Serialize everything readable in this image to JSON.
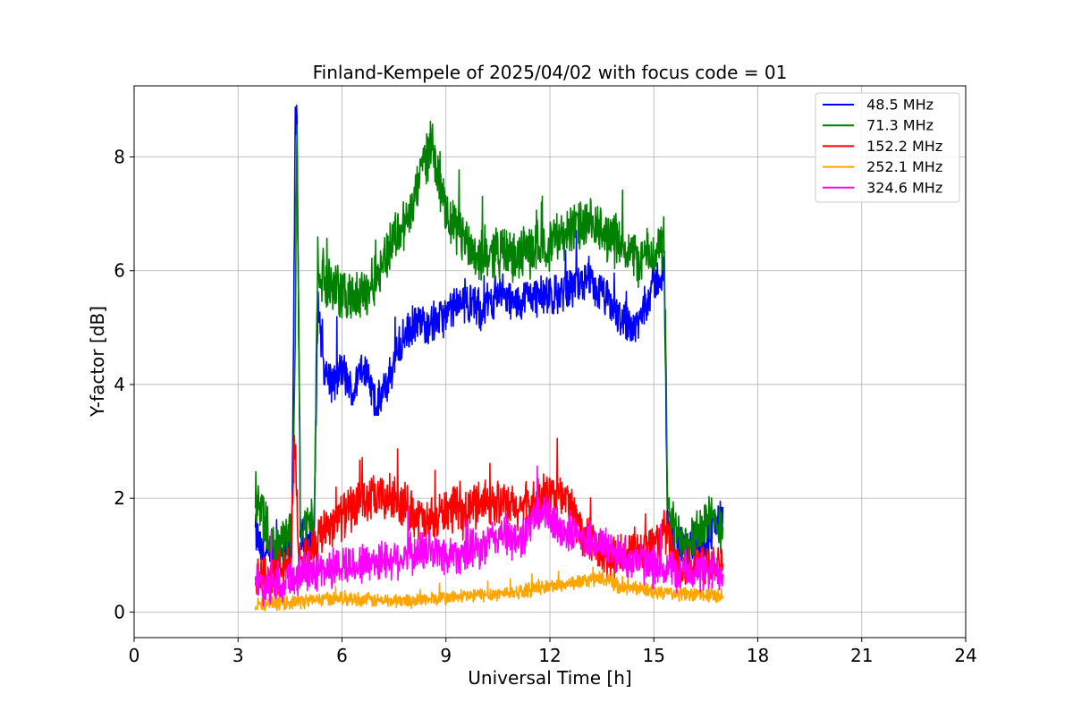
{
  "chart_data": {
    "type": "line",
    "title": "Finland-Kempele of 2025/04/02 with focus code = 01",
    "xlabel": "Universal Time [h]",
    "ylabel": "Y-factor [dB]",
    "xlim": [
      0,
      24
    ],
    "ylim": [
      -0.45,
      9.25
    ],
    "xticks": [
      0,
      3,
      6,
      9,
      12,
      15,
      18,
      21,
      24
    ],
    "xtick_labels": [
      "0",
      "3",
      "6",
      "9",
      "12",
      "15",
      "18",
      "21",
      "24"
    ],
    "yticks": [
      0,
      2,
      4,
      6,
      8
    ],
    "ytick_labels": [
      "0",
      "2",
      "4",
      "6",
      "8"
    ],
    "grid": true,
    "legend_position": "top-right",
    "series": [
      {
        "name": " 48.5 MHz",
        "color": "#0000ff",
        "noise": 0.35,
        "x": [
          3.5,
          3.7,
          4.0,
          4.3,
          4.55,
          4.65,
          4.7,
          4.8,
          5.0,
          5.2,
          5.3,
          5.5,
          5.8,
          6.0,
          6.3,
          6.6,
          7.0,
          7.3,
          7.6,
          8.0,
          8.5,
          9.0,
          9.5,
          10.0,
          10.5,
          11.0,
          11.5,
          12.0,
          12.5,
          13.0,
          13.5,
          14.0,
          14.5,
          15.0,
          15.3,
          15.4,
          15.6,
          16.0,
          16.5,
          17.0
        ],
        "y": [
          1.4,
          1.0,
          0.9,
          1.0,
          1.1,
          8.5,
          8.6,
          1.3,
          1.2,
          1.4,
          5.5,
          4.2,
          4.0,
          4.3,
          3.8,
          4.4,
          3.6,
          4.0,
          4.6,
          5.0,
          5.1,
          5.2,
          5.5,
          5.3,
          5.6,
          5.4,
          5.6,
          5.5,
          5.7,
          5.8,
          5.6,
          5.2,
          5.0,
          5.8,
          5.9,
          1.5,
          1.2,
          1.1,
          1.3,
          1.7
        ]
      },
      {
        "name": " 71.3 MHz",
        "color": "#008000",
        "noise": 0.45,
        "x": [
          3.5,
          3.7,
          4.0,
          4.3,
          4.55,
          4.65,
          4.7,
          4.8,
          5.0,
          5.2,
          5.3,
          5.5,
          6.0,
          6.5,
          7.0,
          7.5,
          8.0,
          8.3,
          8.6,
          9.0,
          9.5,
          10.0,
          10.5,
          11.0,
          11.5,
          12.0,
          12.5,
          13.0,
          13.5,
          14.0,
          14.5,
          15.0,
          15.3,
          15.4,
          15.6,
          16.0,
          16.5,
          17.0
        ],
        "y": [
          2.1,
          1.6,
          1.1,
          1.2,
          1.4,
          5.0,
          8.7,
          1.6,
          1.5,
          1.8,
          6.2,
          5.8,
          5.6,
          5.5,
          5.9,
          6.6,
          7.0,
          7.8,
          8.3,
          6.9,
          6.6,
          6.2,
          6.4,
          6.2,
          6.4,
          6.5,
          6.7,
          6.8,
          6.7,
          6.5,
          6.2,
          6.3,
          6.5,
          1.8,
          1.4,
          1.3,
          1.6,
          1.5
        ]
      },
      {
        "name": " 152.2 MHz",
        "color": "#ff0000",
        "noise": 0.4,
        "x": [
          3.5,
          4.0,
          4.5,
          4.65,
          4.75,
          5.0,
          5.5,
          6.0,
          6.5,
          7.0,
          7.5,
          8.0,
          8.5,
          9.0,
          9.5,
          10.0,
          10.5,
          11.0,
          11.5,
          12.0,
          12.5,
          13.0,
          13.5,
          14.0,
          14.5,
          15.0,
          15.4,
          15.6,
          16.0,
          16.5,
          17.0
        ],
        "y": [
          0.7,
          0.6,
          0.8,
          3.0,
          0.9,
          1.0,
          1.5,
          1.7,
          1.9,
          2.0,
          2.0,
          1.8,
          1.5,
          1.8,
          1.7,
          2.0,
          1.9,
          1.8,
          1.9,
          2.1,
          2.0,
          1.3,
          1.0,
          0.9,
          1.1,
          1.2,
          1.4,
          0.9,
          0.8,
          0.9,
          0.9
        ]
      },
      {
        "name": " 252.1 MHz",
        "color": "#ffa500",
        "noise": 0.12,
        "x": [
          3.5,
          4.0,
          5.0,
          6.0,
          7.0,
          8.0,
          9.0,
          10.0,
          11.0,
          12.0,
          13.0,
          13.5,
          14.0,
          14.5,
          15.0,
          16.0,
          17.0
        ],
        "y": [
          0.15,
          0.15,
          0.2,
          0.25,
          0.2,
          0.2,
          0.25,
          0.3,
          0.35,
          0.45,
          0.55,
          0.6,
          0.45,
          0.4,
          0.35,
          0.3,
          0.3
        ]
      },
      {
        "name": " 324.6 MHz",
        "color": "#ff00ff",
        "noise": 0.35,
        "x": [
          3.5,
          4.0,
          5.0,
          6.0,
          7.0,
          8.0,
          8.5,
          9.0,
          10.0,
          10.6,
          11.0,
          11.8,
          12.0,
          12.5,
          13.0,
          13.5,
          14.0,
          14.5,
          15.0,
          16.0,
          17.0
        ],
        "y": [
          0.5,
          0.5,
          0.7,
          0.8,
          0.9,
          1.0,
          1.1,
          1.0,
          1.1,
          1.4,
          1.2,
          1.8,
          1.6,
          1.4,
          1.3,
          1.2,
          1.0,
          0.9,
          0.8,
          0.7,
          0.7
        ]
      }
    ]
  }
}
